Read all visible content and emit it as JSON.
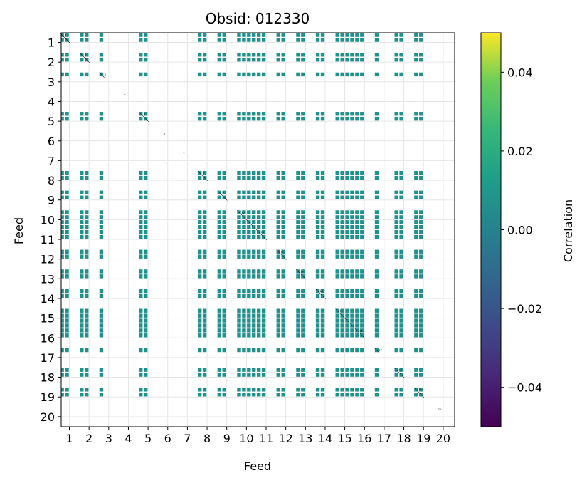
{
  "chart_data": {
    "type": "heatmap",
    "title": "Obsid: 012330",
    "xlabel": "Feed",
    "ylabel": "Feed",
    "x_ticks": [
      "1",
      "2",
      "3",
      "4",
      "5",
      "6",
      "7",
      "8",
      "9",
      "10",
      "11",
      "12",
      "13",
      "14",
      "15",
      "16",
      "17",
      "18",
      "19",
      "20"
    ],
    "y_ticks": [
      "1",
      "2",
      "3",
      "4",
      "5",
      "6",
      "7",
      "8",
      "9",
      "10",
      "11",
      "12",
      "13",
      "14",
      "15",
      "16",
      "17",
      "18",
      "19",
      "20"
    ],
    "feeds": [
      1,
      2,
      3,
      4,
      5,
      6,
      7,
      8,
      9,
      10,
      11,
      12,
      13,
      14,
      15,
      16,
      17,
      18,
      19,
      20
    ],
    "sub_cells_per_feed": 4,
    "feed_sub_cells": {
      "1": 2,
      "2": 2,
      "3": 1,
      "4": 0,
      "5": 2,
      "6": 0,
      "7": 0,
      "8": 2,
      "9": 2,
      "10": 4,
      "11": 2,
      "12": 2,
      "13": 2,
      "14": 2,
      "15": 4,
      "16": 2,
      "17": 1,
      "18": 2,
      "19": 2,
      "20": 0
    },
    "missing_feeds": [
      4,
      6,
      7,
      20
    ],
    "cell_value": 0.0,
    "diagonal_labels": [
      "1",
      "2",
      "3",
      "4",
      "5",
      "6",
      "7",
      "8",
      "9",
      "10",
      "11",
      "12",
      "13",
      "14",
      "15",
      "16",
      "17",
      "18",
      "19",
      "20"
    ],
    "colorbar": {
      "label": "Correlation",
      "vmin": -0.05,
      "vmax": 0.05,
      "ticks": [
        -0.04,
        -0.02,
        0.0,
        0.02,
        0.04
      ],
      "tick_labels": [
        "−0.04",
        "−0.02",
        "0.00",
        "0.02",
        "0.04"
      ],
      "colormap": "viridis"
    },
    "grid": true
  },
  "colors": {
    "cell": "#21918c",
    "grid": "#e6e6e6"
  }
}
